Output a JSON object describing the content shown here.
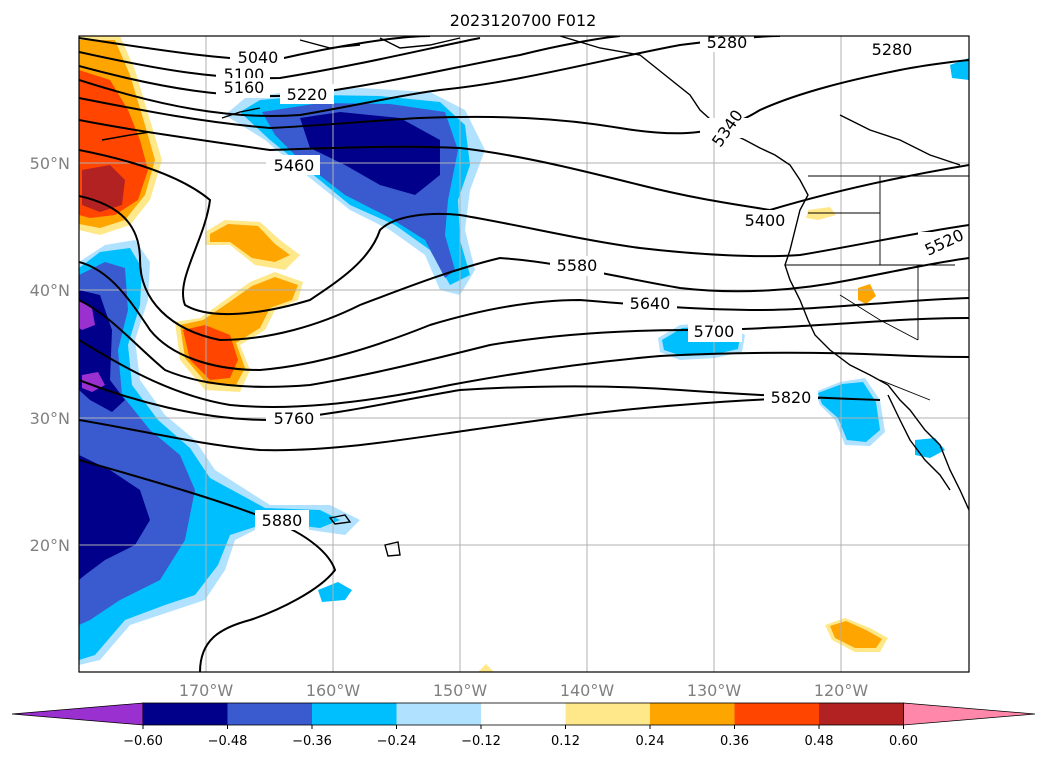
{
  "title": "2023120700 F012",
  "lat_labels": [
    "50°N",
    "40°N",
    "30°N",
    "20°N"
  ],
  "lon_labels": [
    "170°W",
    "160°W",
    "150°W",
    "140°W",
    "130°W",
    "120°W"
  ],
  "contour_labels": [
    "5040",
    "5100",
    "5160",
    "5220",
    "5280",
    "5280",
    "5340",
    "5400",
    "5460",
    "5520",
    "5580",
    "5640",
    "5700",
    "5760",
    "5820",
    "5880"
  ],
  "colorbar": {
    "ticks": [
      "−0.60",
      "−0.48",
      "−0.36",
      "−0.24",
      "−0.12",
      "0.12",
      "0.24",
      "0.36",
      "0.48",
      "0.60"
    ],
    "colors": [
      "#9b30d0",
      "#00008b",
      "#3a5bd0",
      "#00bfff",
      "#b0e2ff",
      "#ffffff",
      "#ffe88a",
      "#ffa500",
      "#ff4500",
      "#b22222",
      "#ff88aa"
    ]
  },
  "chart_data": {
    "type": "heatmap",
    "title": "2023120700 F012",
    "x_ticks": [
      "170°W",
      "160°W",
      "150°W",
      "140°W",
      "130°W",
      "120°W"
    ],
    "y_ticks": [
      "50°N",
      "40°N",
      "30°N",
      "20°N"
    ],
    "xlim": [
      -180,
      -110
    ],
    "ylim": [
      10,
      60
    ],
    "contour_levels": [
      5040,
      5100,
      5160,
      5220,
      5280,
      5340,
      5400,
      5460,
      5520,
      5580,
      5640,
      5700,
      5760,
      5820,
      5880
    ],
    "color_levels": [
      -0.6,
      -0.48,
      -0.36,
      -0.24,
      -0.12,
      0.12,
      0.24,
      0.36,
      0.48,
      0.6
    ],
    "grid": true,
    "colorbar": "bottom"
  }
}
